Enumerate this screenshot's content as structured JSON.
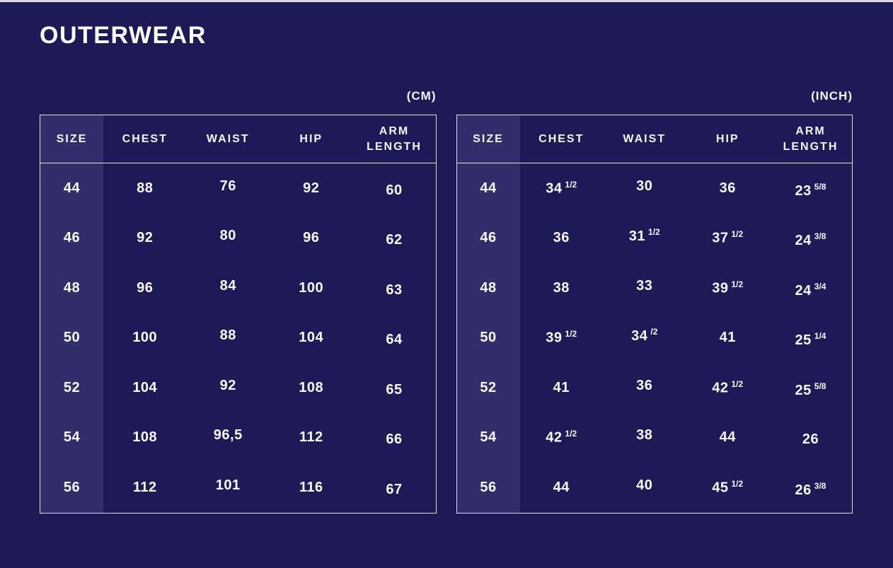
{
  "page": {
    "title": "OUTERWEAR",
    "background_color": "#1c1a57",
    "size_column_color": "#312e6b",
    "border_color": "#dfdfe9",
    "text_color": "#ffffff"
  },
  "tables": [
    {
      "id": "cm",
      "unit_label": "(CM)",
      "headers": {
        "size": "SIZE",
        "chest": "CHEST",
        "waist": "WAIST",
        "hip": "HIP",
        "arm_length": "ARM LENGTH"
      },
      "rows": [
        {
          "size": "44",
          "chest": {
            "v": "88",
            "f": ""
          },
          "waist": {
            "v": "76",
            "f": ""
          },
          "hip": {
            "v": "92",
            "f": ""
          },
          "arm_length": {
            "v": "60",
            "f": ""
          }
        },
        {
          "size": "46",
          "chest": {
            "v": "92",
            "f": ""
          },
          "waist": {
            "v": "80",
            "f": ""
          },
          "hip": {
            "v": "96",
            "f": ""
          },
          "arm_length": {
            "v": "62",
            "f": ""
          }
        },
        {
          "size": "48",
          "chest": {
            "v": "96",
            "f": ""
          },
          "waist": {
            "v": "84",
            "f": ""
          },
          "hip": {
            "v": "100",
            "f": ""
          },
          "arm_length": {
            "v": "63",
            "f": ""
          }
        },
        {
          "size": "50",
          "chest": {
            "v": "100",
            "f": ""
          },
          "waist": {
            "v": "88",
            "f": ""
          },
          "hip": {
            "v": "104",
            "f": ""
          },
          "arm_length": {
            "v": "64",
            "f": ""
          }
        },
        {
          "size": "52",
          "chest": {
            "v": "104",
            "f": ""
          },
          "waist": {
            "v": "92",
            "f": ""
          },
          "hip": {
            "v": "108",
            "f": ""
          },
          "arm_length": {
            "v": "65",
            "f": ""
          }
        },
        {
          "size": "54",
          "chest": {
            "v": "108",
            "f": ""
          },
          "waist": {
            "v": "96,5",
            "f": ""
          },
          "hip": {
            "v": "112",
            "f": ""
          },
          "arm_length": {
            "v": "66",
            "f": ""
          }
        },
        {
          "size": "56",
          "chest": {
            "v": "112",
            "f": ""
          },
          "waist": {
            "v": "101",
            "f": ""
          },
          "hip": {
            "v": "116",
            "f": ""
          },
          "arm_length": {
            "v": "67",
            "f": ""
          }
        }
      ]
    },
    {
      "id": "inch",
      "unit_label": "(INCH)",
      "headers": {
        "size": "SIZE",
        "chest": "CHEST",
        "waist": "WAIST",
        "hip": "HIP",
        "arm_length": "ARM LENGTH"
      },
      "rows": [
        {
          "size": "44",
          "chest": {
            "v": "34",
            "f": "1/2"
          },
          "waist": {
            "v": "30",
            "f": ""
          },
          "hip": {
            "v": "36",
            "f": ""
          },
          "arm_length": {
            "v": "23",
            "f": "5/8"
          }
        },
        {
          "size": "46",
          "chest": {
            "v": "36",
            "f": ""
          },
          "waist": {
            "v": "31",
            "f": "1/2"
          },
          "hip": {
            "v": "37",
            "f": "1/2"
          },
          "arm_length": {
            "v": "24",
            "f": "3/8"
          }
        },
        {
          "size": "48",
          "chest": {
            "v": "38",
            "f": ""
          },
          "waist": {
            "v": "33",
            "f": ""
          },
          "hip": {
            "v": "39",
            "f": "1/2"
          },
          "arm_length": {
            "v": "24",
            "f": "3/4"
          }
        },
        {
          "size": "50",
          "chest": {
            "v": "39",
            "f": "1/2"
          },
          "waist": {
            "v": "34",
            "f": "/2"
          },
          "hip": {
            "v": "41",
            "f": ""
          },
          "arm_length": {
            "v": "25",
            "f": "1/4"
          }
        },
        {
          "size": "52",
          "chest": {
            "v": "41",
            "f": ""
          },
          "waist": {
            "v": "36",
            "f": ""
          },
          "hip": {
            "v": "42",
            "f": "1/2"
          },
          "arm_length": {
            "v": "25",
            "f": "5/8"
          }
        },
        {
          "size": "54",
          "chest": {
            "v": "42",
            "f": "1/2"
          },
          "waist": {
            "v": "38",
            "f": ""
          },
          "hip": {
            "v": "44",
            "f": ""
          },
          "arm_length": {
            "v": "26",
            "f": ""
          }
        },
        {
          "size": "56",
          "chest": {
            "v": "44",
            "f": ""
          },
          "waist": {
            "v": "40",
            "f": ""
          },
          "hip": {
            "v": "45",
            "f": "1/2"
          },
          "arm_length": {
            "v": "26",
            "f": "3/8"
          }
        }
      ]
    }
  ]
}
